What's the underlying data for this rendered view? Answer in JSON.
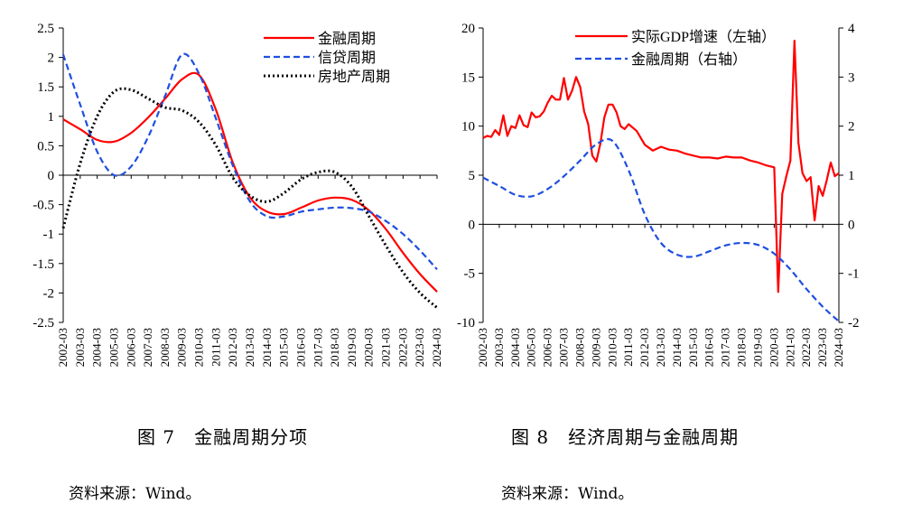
{
  "figures": {
    "fig7": {
      "caption": "图 7　金融周期分项",
      "source": "资料来源：Wind。"
    },
    "fig8": {
      "caption": "图 8　经济周期与金融周期",
      "source": "资料来源：Wind。"
    }
  },
  "colors": {
    "red": "#ff0000",
    "blue": "#1f4fe0",
    "black": "#000000"
  },
  "chart_data": [
    {
      "type": "line",
      "title": "",
      "ylim": [
        -2.5,
        2.5
      ],
      "yticks": [
        "2.5",
        "2",
        "1.5",
        "1",
        "0.5",
        "0",
        "-0.5",
        "-1",
        "-1.5",
        "-2",
        "-2.5"
      ],
      "categories": [
        "2002-03",
        "2003-03",
        "2004-03",
        "2005-03",
        "2006-03",
        "2007-03",
        "2008-03",
        "2009-03",
        "2010-03",
        "2011-03",
        "2012-03",
        "2013-03",
        "2014-03",
        "2015-03",
        "2016-03",
        "2017-03",
        "2018-03",
        "2019-03",
        "2020-03",
        "2021-03",
        "2022-03",
        "2023-03",
        "2024-03"
      ],
      "legend_position": "top-right",
      "series": [
        {
          "name": "金融周期",
          "color": "#ff0000",
          "style": "solid",
          "values": [
            0.95,
            0.78,
            0.6,
            0.57,
            0.72,
            0.98,
            1.3,
            1.63,
            1.7,
            1.1,
            0.2,
            -0.38,
            -0.62,
            -0.66,
            -0.55,
            -0.43,
            -0.38,
            -0.42,
            -0.6,
            -0.92,
            -1.32,
            -1.68,
            -1.98
          ]
        },
        {
          "name": "信贷周期",
          "color": "#1f4fe0",
          "style": "dashed",
          "values": [
            2.05,
            1.2,
            0.4,
            0.0,
            0.15,
            0.65,
            1.35,
            2.05,
            1.72,
            0.95,
            0.15,
            -0.45,
            -0.7,
            -0.7,
            -0.62,
            -0.58,
            -0.55,
            -0.56,
            -0.62,
            -0.78,
            -1.0,
            -1.28,
            -1.6
          ]
        },
        {
          "name": "房地产周期",
          "color": "#000000",
          "style": "dotted",
          "values": [
            -0.9,
            0.2,
            1.0,
            1.42,
            1.45,
            1.3,
            1.15,
            1.1,
            0.9,
            0.5,
            -0.05,
            -0.35,
            -0.45,
            -0.3,
            -0.07,
            0.05,
            0.05,
            -0.2,
            -0.7,
            -1.2,
            -1.65,
            -2.0,
            -2.25
          ]
        }
      ]
    },
    {
      "type": "line",
      "title": "",
      "ylim": [
        -10,
        20
      ],
      "yticks": [
        "20",
        "15",
        "10",
        "5",
        "0",
        "-5",
        "-10"
      ],
      "y2lim": [
        -2,
        4
      ],
      "y2ticks": [
        "4",
        "3",
        "2",
        "1",
        "0",
        "-1",
        "-2"
      ],
      "categories": [
        "2002-03",
        "2003-03",
        "2004-03",
        "2005-03",
        "2006-03",
        "2007-03",
        "2008-03",
        "2009-03",
        "2010-03",
        "2011-03",
        "2012-03",
        "2013-03",
        "2014-03",
        "2015-03",
        "2016-03",
        "2017-03",
        "2018-03",
        "2019-03",
        "2020-03",
        "2021-03",
        "2022-03",
        "2023-03",
        "2024-03"
      ],
      "legend_position": "top-left",
      "series": [
        {
          "name": "实际GDP增速（左轴）",
          "color": "#ff0000",
          "style": "solid",
          "axis": "left",
          "x": [
            2002.0,
            2002.25,
            2002.5,
            2002.75,
            2003.0,
            2003.25,
            2003.5,
            2003.75,
            2004.0,
            2004.25,
            2004.5,
            2004.75,
            2005.0,
            2005.25,
            2005.5,
            2005.75,
            2006.0,
            2006.25,
            2006.5,
            2006.75,
            2007.0,
            2007.25,
            2007.5,
            2007.75,
            2008.0,
            2008.25,
            2008.5,
            2008.75,
            2009.0,
            2009.25,
            2009.5,
            2009.75,
            2010.0,
            2010.25,
            2010.5,
            2010.75,
            2011.0,
            2011.5,
            2012.0,
            2012.5,
            2013.0,
            2013.5,
            2014.0,
            2014.5,
            2015.0,
            2015.5,
            2016.0,
            2016.5,
            2017.0,
            2017.5,
            2018.0,
            2018.5,
            2019.0,
            2019.5,
            2020.0,
            2020.25,
            2020.5,
            2020.75,
            2021.0,
            2021.25,
            2021.5,
            2021.75,
            2022.0,
            2022.25,
            2022.5,
            2022.75,
            2023.0,
            2023.25,
            2023.5,
            2023.75,
            2024.0
          ],
          "values": [
            8.8,
            9.0,
            8.9,
            9.6,
            9.1,
            11.1,
            9.0,
            10.0,
            9.8,
            11.1,
            10.1,
            9.9,
            11.4,
            10.9,
            11.0,
            11.5,
            12.4,
            13.1,
            12.7,
            12.7,
            14.9,
            12.7,
            13.6,
            15.0,
            14.0,
            11.5,
            10.2,
            7.0,
            6.4,
            8.2,
            10.9,
            12.2,
            12.2,
            11.4,
            10.0,
            9.7,
            10.2,
            9.5,
            8.1,
            7.5,
            7.9,
            7.6,
            7.5,
            7.2,
            7.0,
            6.8,
            6.8,
            6.7,
            6.9,
            6.8,
            6.8,
            6.5,
            6.3,
            6.0,
            5.8,
            -6.9,
            3.1,
            4.9,
            6.5,
            18.7,
            8.3,
            5.2,
            4.4,
            4.8,
            0.4,
            3.9,
            2.9,
            4.5,
            6.3,
            4.9,
            5.2
          ]
        },
        {
          "name": "金融周期（右轴）",
          "color": "#1f4fe0",
          "style": "dashed",
          "axis": "right",
          "x": [
            2002.0,
            2003.0,
            2004.0,
            2005.0,
            2006.0,
            2007.0,
            2008.0,
            2009.0,
            2010.0,
            2011.0,
            2012.0,
            2013.0,
            2014.0,
            2015.0,
            2016.0,
            2017.0,
            2018.0,
            2019.0,
            2020.0,
            2021.0,
            2022.0,
            2023.0,
            2024.0
          ],
          "values": [
            0.95,
            0.78,
            0.6,
            0.57,
            0.72,
            0.98,
            1.3,
            1.63,
            1.7,
            1.1,
            0.2,
            -0.38,
            -0.62,
            -0.66,
            -0.55,
            -0.43,
            -0.38,
            -0.42,
            -0.6,
            -0.92,
            -1.32,
            -1.68,
            -1.98
          ]
        }
      ]
    }
  ]
}
